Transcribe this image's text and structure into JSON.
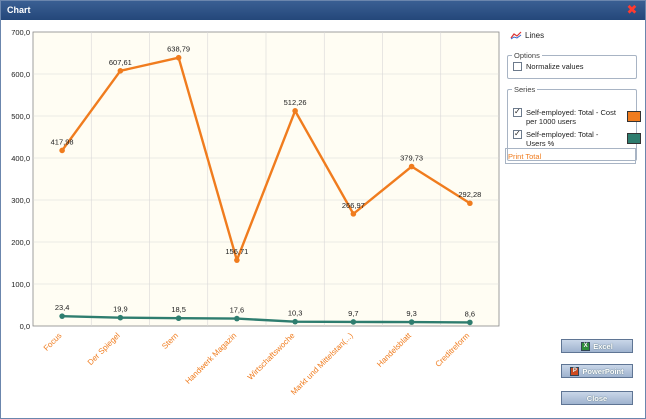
{
  "window": {
    "title": "Chart"
  },
  "panel": {
    "lines_label": "Lines",
    "options_legend": "Options",
    "normalize_label": "Normalize values",
    "normalize_checked": false,
    "series_legend": "Series",
    "series": [
      {
        "label": "Self-employed: Total - Cost per 1000 users",
        "checked": true,
        "color": "#f07c1e"
      },
      {
        "label": "Self-employed: Total - Users %",
        "checked": true,
        "color": "#2e7d6f"
      }
    ],
    "print_total": "Print Total"
  },
  "buttons": {
    "excel": "Excel",
    "powerpoint": "PowerPoint",
    "close": "Close"
  },
  "colors": {
    "orange": "#f07c1e",
    "teal": "#2e7d6f",
    "plot_bg": "#fffdf3"
  },
  "chart_data": {
    "type": "line",
    "categories": [
      "Focus",
      "Der Spiegel",
      "Stern",
      "Handwerk Magazin",
      "Wirtschaftswoche",
      "Markt und Mittelstan(...)",
      "Handelsblatt",
      "Creditreform"
    ],
    "series": [
      {
        "name": "Self-employed: Total - Cost per 1000 users",
        "values": [
          417.98,
          607.61,
          638.79,
          156.71,
          512.26,
          266.97,
          379.73,
          292.28
        ],
        "labels": [
          "417,98",
          "607,61",
          "638,79",
          "156,71",
          "512,26",
          "266,97",
          "379,73",
          "292,28"
        ],
        "color": "#f07c1e"
      },
      {
        "name": "Self-employed: Total - Users %",
        "values": [
          23.4,
          19.9,
          18.5,
          17.6,
          10.3,
          9.7,
          9.3,
          8.6
        ],
        "labels": [
          "23,4",
          "19,9",
          "18,5",
          "17,6",
          "10,3",
          "9,7",
          "9,3",
          "8,6"
        ],
        "color": "#2e7d6f"
      }
    ],
    "ylim": [
      0,
      700
    ],
    "yticks": [
      0,
      100,
      200,
      300,
      400,
      500,
      600,
      700
    ],
    "ytick_labels": [
      "0,0",
      "100,0",
      "200,0",
      "300,0",
      "400,0",
      "500,0",
      "600,0",
      "700,0"
    ],
    "grid": true,
    "legend": "right"
  }
}
